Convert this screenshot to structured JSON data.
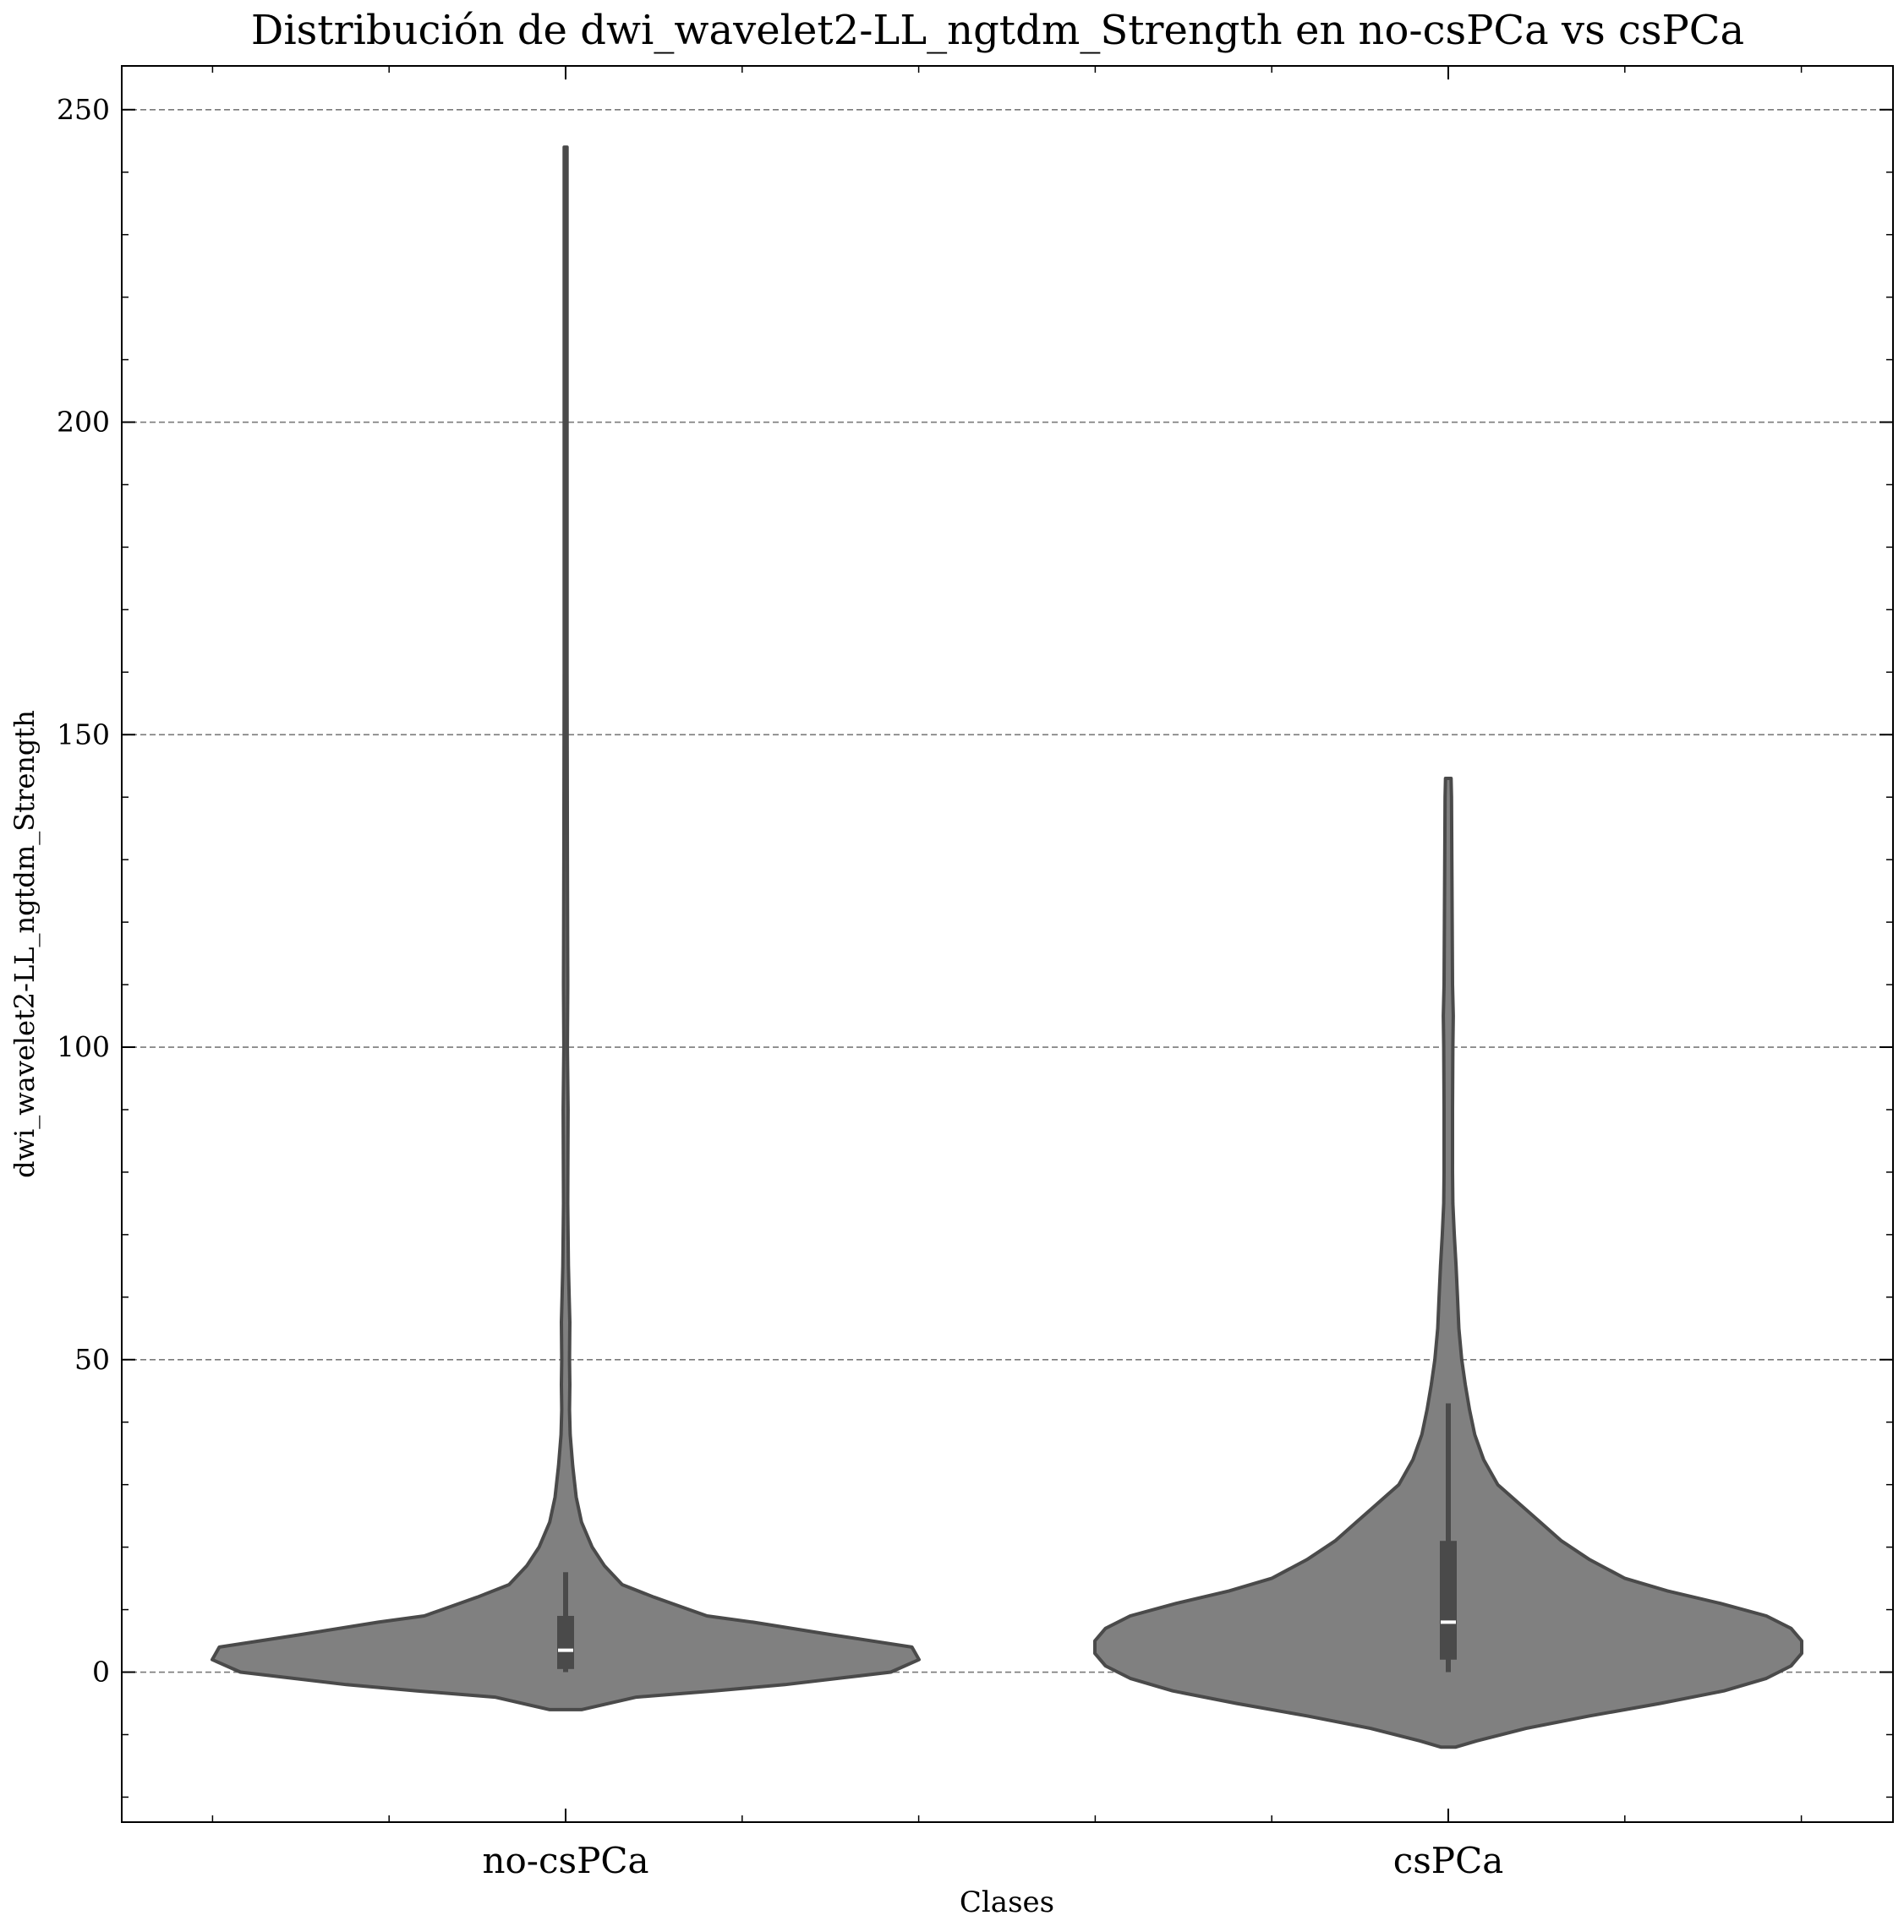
{
  "chart_data": {
    "type": "violin",
    "title": "Distribución de dwi_wavelet2-LL_ngtdm_Strength en no-csPCa vs csPCa",
    "xlabel": "Clases",
    "ylabel": "dwi_wavelet2-LL_ngtdm_Strength",
    "categories": [
      "no-csPCa",
      "csPCa"
    ],
    "ylim": [
      -24,
      257
    ],
    "yticks": [
      0,
      50,
      100,
      150,
      200,
      250
    ],
    "ytick_labels": [
      "0",
      "50",
      "100",
      "150",
      "200",
      "250"
    ],
    "grid": "horizontal-dashed",
    "violin_color": "#808080",
    "line_color": "#4a4a4a",
    "series": [
      {
        "category": "no-csPCa",
        "min": 0,
        "max": 243,
        "q1": 0.5,
        "median": 3.5,
        "q3": 9,
        "whisker_low": 0,
        "whisker_high": 16,
        "kde_extent": [
          -6,
          244
        ],
        "density": [
          [
            -6,
            0.045
          ],
          [
            -4,
            0.2
          ],
          [
            -3,
            0.42
          ],
          [
            -2,
            0.62
          ],
          [
            0,
            0.92
          ],
          [
            2,
            1.0
          ],
          [
            4,
            0.98
          ],
          [
            6,
            0.75
          ],
          [
            8,
            0.53
          ],
          [
            9,
            0.4
          ],
          [
            10,
            0.35
          ],
          [
            12,
            0.25
          ],
          [
            14,
            0.16
          ],
          [
            17,
            0.11
          ],
          [
            20,
            0.075
          ],
          [
            24,
            0.045
          ],
          [
            28,
            0.03
          ],
          [
            33,
            0.02
          ],
          [
            38,
            0.013
          ],
          [
            42,
            0.011
          ],
          [
            46,
            0.012
          ],
          [
            50,
            0.011
          ],
          [
            56,
            0.012
          ],
          [
            60,
            0.01
          ],
          [
            65,
            0.008
          ],
          [
            75,
            0.006
          ],
          [
            90,
            0.007
          ],
          [
            100,
            0.005
          ],
          [
            110,
            0.006
          ],
          [
            130,
            0.005
          ],
          [
            160,
            0.004
          ],
          [
            200,
            0.004
          ],
          [
            230,
            0.004
          ],
          [
            244,
            0.004
          ]
        ]
      },
      {
        "category": "csPCa",
        "min": 0,
        "max": 143,
        "q1": 2,
        "median": 8,
        "q3": 21,
        "whisker_low": 0,
        "whisker_high": 43,
        "kde_extent": [
          -12,
          143
        ],
        "density": [
          [
            -12,
            0.02
          ],
          [
            -11,
            0.08
          ],
          [
            -9,
            0.22
          ],
          [
            -7,
            0.4
          ],
          [
            -5,
            0.6
          ],
          [
            -3,
            0.78
          ],
          [
            -1,
            0.9
          ],
          [
            1,
            0.97
          ],
          [
            3,
            1.0
          ],
          [
            5,
            1.0
          ],
          [
            7,
            0.97
          ],
          [
            9,
            0.9
          ],
          [
            11,
            0.77
          ],
          [
            13,
            0.62
          ],
          [
            15,
            0.5
          ],
          [
            18,
            0.4
          ],
          [
            21,
            0.32
          ],
          [
            24,
            0.26
          ],
          [
            27,
            0.2
          ],
          [
            30,
            0.14
          ],
          [
            34,
            0.1
          ],
          [
            38,
            0.075
          ],
          [
            42,
            0.06
          ],
          [
            46,
            0.048
          ],
          [
            50,
            0.038
          ],
          [
            55,
            0.03
          ],
          [
            60,
            0.026
          ],
          [
            65,
            0.022
          ],
          [
            70,
            0.017
          ],
          [
            75,
            0.013
          ],
          [
            80,
            0.012
          ],
          [
            90,
            0.012
          ],
          [
            100,
            0.013
          ],
          [
            105,
            0.014
          ],
          [
            110,
            0.012
          ],
          [
            120,
            0.011
          ],
          [
            130,
            0.01
          ],
          [
            140,
            0.009
          ],
          [
            143,
            0.008
          ]
        ]
      }
    ]
  }
}
